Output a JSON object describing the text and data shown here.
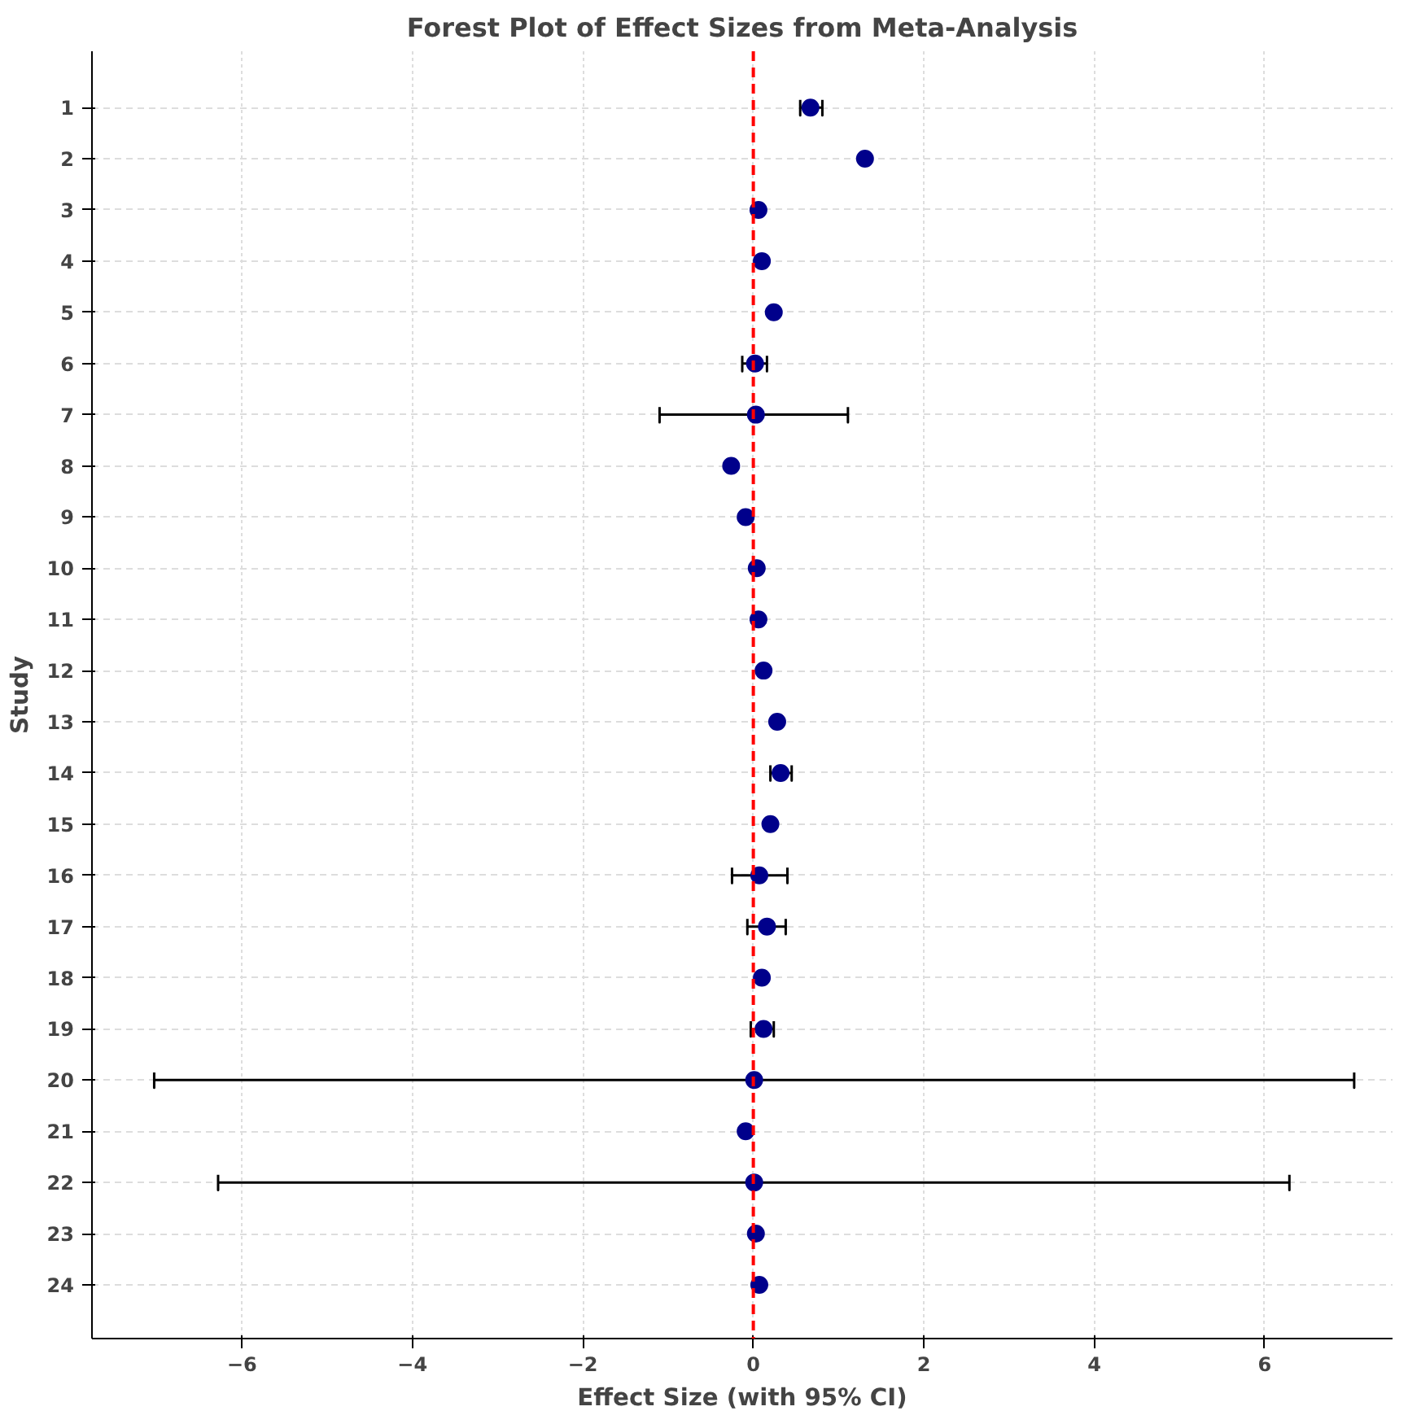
{
  "chart_data": {
    "type": "scatter",
    "orientation": "horizontal",
    "title": "Forest Plot of Effect Sizes from Meta-Analysis",
    "xlabel": "Effect Size (with 95% CI)",
    "ylabel": "Study",
    "categories": [
      "1",
      "2",
      "3",
      "4",
      "5",
      "6",
      "7",
      "8",
      "9",
      "10",
      "11",
      "12",
      "13",
      "14",
      "15",
      "16",
      "17",
      "18",
      "19",
      "20",
      "21",
      "22",
      "23",
      "24"
    ],
    "values": [
      0.67,
      1.31,
      0.06,
      0.1,
      0.24,
      0.02,
      0.03,
      -0.26,
      -0.09,
      0.04,
      0.06,
      0.12,
      0.28,
      0.32,
      0.2,
      0.07,
      0.16,
      0.1,
      0.12,
      0.01,
      -0.09,
      0.01,
      0.03,
      0.07
    ],
    "errors": [
      [
        0.55,
        0.81
      ],
      null,
      null,
      null,
      null,
      [
        -0.13,
        0.16
      ],
      [
        -1.1,
        1.11
      ],
      null,
      null,
      null,
      null,
      null,
      null,
      [
        0.2,
        0.45
      ],
      null,
      [
        -0.25,
        0.4
      ],
      [
        -0.07,
        0.38
      ],
      null,
      [
        -0.03,
        0.24
      ],
      [
        -7.03,
        7.05
      ],
      null,
      [
        -6.28,
        6.29
      ],
      null,
      null
    ],
    "color": "#00008b",
    "marker": "circle",
    "xlim": [
      -7.76,
      7.5
    ],
    "xticks": [
      {
        "value": -6,
        "label": "−6"
      },
      {
        "value": -4,
        "label": "−4"
      },
      {
        "value": -2,
        "label": "−2"
      },
      0,
      2,
      4,
      6
    ],
    "ref_lines": [
      {
        "axis": "x",
        "value": 0,
        "color": "#ff0000",
        "line_style": "dashed"
      }
    ],
    "grid": true
  }
}
